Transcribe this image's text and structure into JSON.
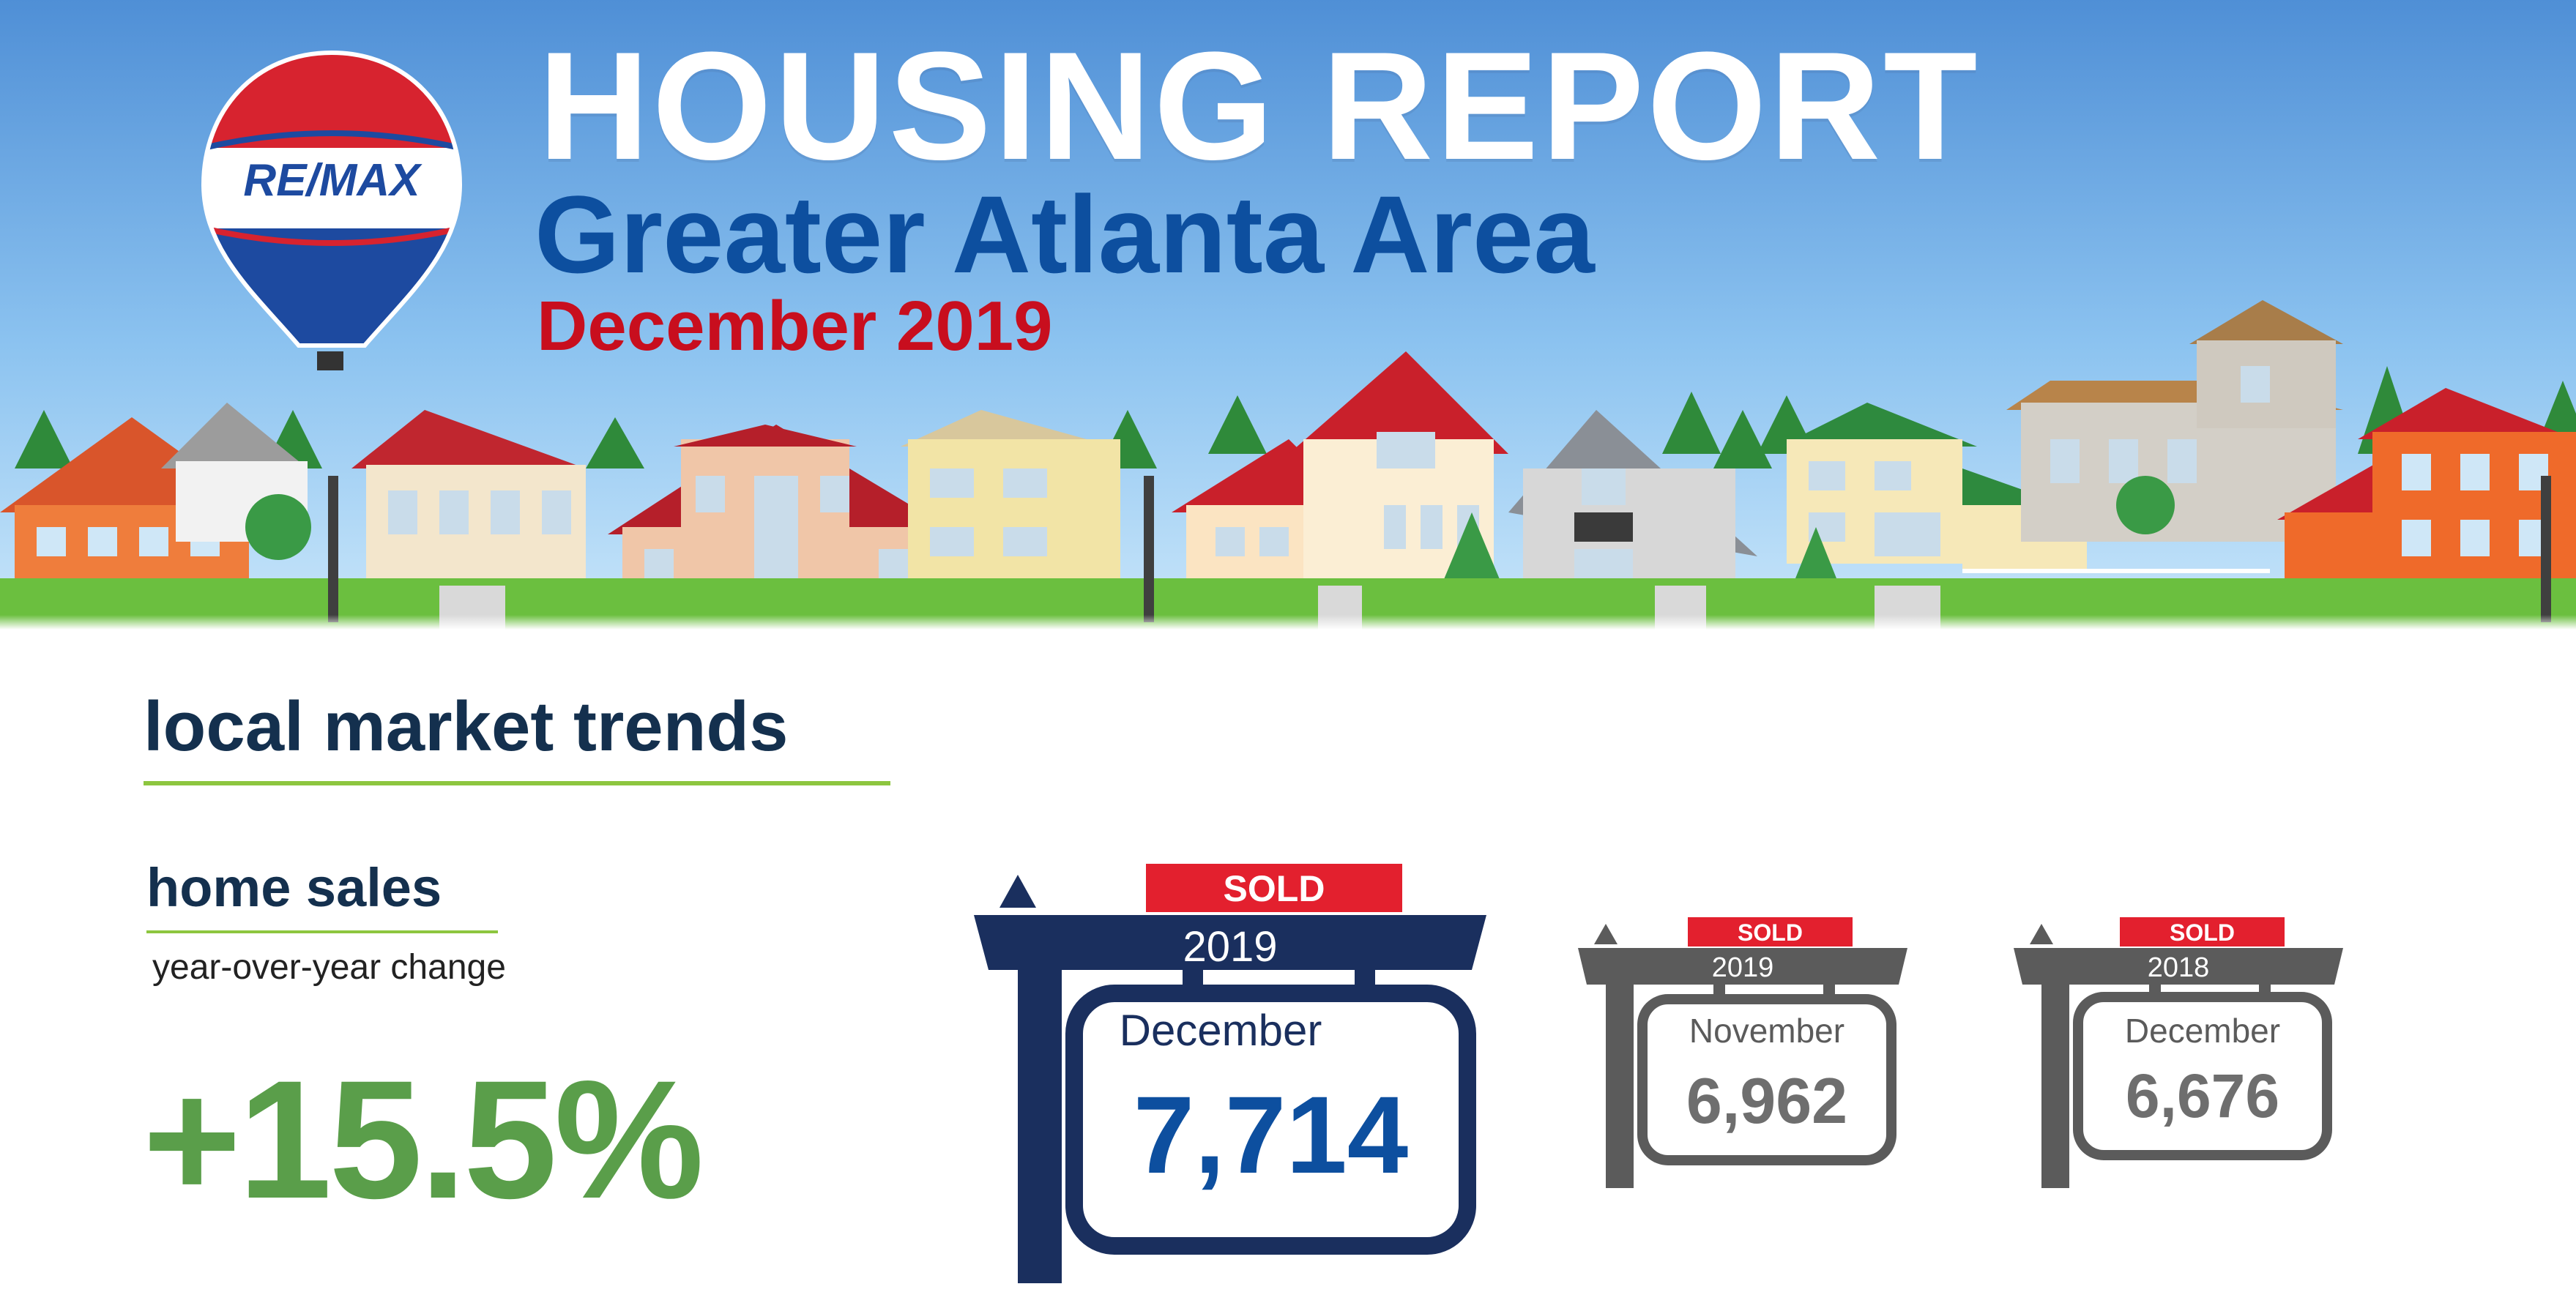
{
  "header": {
    "title": "HOUSING REPORT",
    "subtitle": "Greater Atlanta Area",
    "date": "December 2019",
    "logo_text": "RE/MAX"
  },
  "section": {
    "title": "local market trends",
    "subsection_title": "home sales",
    "subsection_caption": "year-over-year change",
    "change_value": "+15.5%"
  },
  "signs": [
    {
      "badge": "SOLD",
      "year": "2019",
      "month": "December",
      "value": "7,714",
      "style": "primary"
    },
    {
      "badge": "SOLD",
      "year": "2019",
      "month": "November",
      "value": "6,962",
      "style": "secondary"
    },
    {
      "badge": "SOLD",
      "year": "2018",
      "month": "December",
      "value": "6,676",
      "style": "secondary"
    }
  ],
  "colors": {
    "title_white": "#ffffff",
    "subtitle_blue": "#0d4f9f",
    "date_red": "#c80e1e",
    "heading_navy": "#14304e",
    "accent_green": "#8dc63f",
    "change_green": "#5a9e4a",
    "sign_navy": "#1a2f5e",
    "sign_gray": "#5b5b5b",
    "sold_red": "#e3202e"
  }
}
